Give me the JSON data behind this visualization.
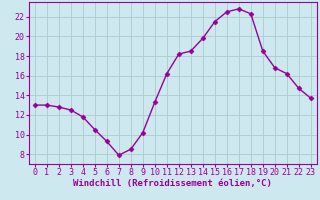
{
  "x": [
    0,
    1,
    2,
    3,
    4,
    5,
    6,
    7,
    8,
    9,
    10,
    11,
    12,
    13,
    14,
    15,
    16,
    17,
    18,
    19,
    20,
    21,
    22,
    23
  ],
  "y": [
    13.0,
    13.0,
    12.8,
    12.5,
    11.8,
    10.5,
    9.3,
    7.9,
    8.5,
    10.2,
    13.3,
    16.2,
    18.2,
    18.5,
    19.8,
    21.5,
    22.5,
    22.8,
    22.3,
    18.5,
    16.8,
    16.2,
    14.7,
    13.7
  ],
  "line_color": "#990099",
  "marker": "D",
  "marker_size": 2.5,
  "background_color": "#cde8ee",
  "grid_color": "#aacccc",
  "xlabel": "Windchill (Refroidissement éolien,°C)",
  "xlabel_color": "#990099",
  "tick_color": "#990099",
  "axis_color": "#990099",
  "ylim": [
    7,
    23.5
  ],
  "yticks": [
    8,
    10,
    12,
    14,
    16,
    18,
    20,
    22
  ],
  "xticks": [
    0,
    1,
    2,
    3,
    4,
    5,
    6,
    7,
    8,
    9,
    10,
    11,
    12,
    13,
    14,
    15,
    16,
    17,
    18,
    19,
    20,
    21,
    22,
    23
  ],
  "label_fontsize": 6.5,
  "tick_fontsize": 6,
  "line_width": 1.0
}
